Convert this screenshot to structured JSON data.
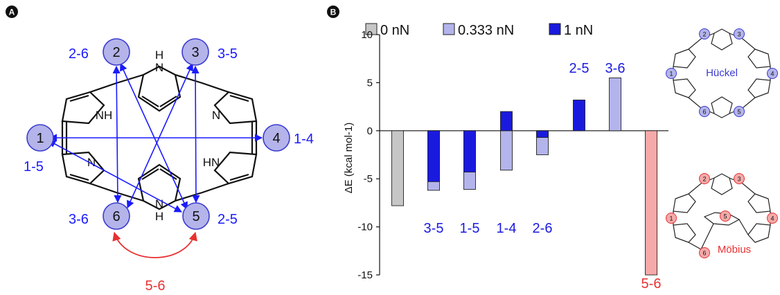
{
  "panelA": {
    "label": "A",
    "nodes": [
      {
        "id": "1",
        "label": "1"
      },
      {
        "id": "2",
        "label": "2"
      },
      {
        "id": "3",
        "label": "3"
      },
      {
        "id": "4",
        "label": "4"
      },
      {
        "id": "5",
        "label": "5"
      },
      {
        "id": "6",
        "label": "6"
      }
    ],
    "pair_labels": [
      {
        "text": "2-6"
      },
      {
        "text": "3-5"
      },
      {
        "text": "1-4"
      },
      {
        "text": "1-5"
      },
      {
        "text": "3-6"
      },
      {
        "text": "2-5"
      }
    ],
    "mobius_pair": "5-6",
    "atom_labels": {
      "nh_top": "H",
      "n_top": "N",
      "nh_left": "NH",
      "n_right": "N",
      "n_left": "N",
      "hn_right": "HN",
      "n_bottom": "N",
      "h_bottom": "H"
    },
    "colors": {
      "node_fill": "#b4b4ea",
      "node_stroke": "#3a3ad0",
      "pair": "#1a1aff",
      "mobius": "#e83030"
    }
  },
  "panelB": {
    "label": "B",
    "chart_data": {
      "type": "bar",
      "stacked_overlay": true,
      "ylabel": "ΔE (kcal mol-1)",
      "ylim": [
        -15,
        10
      ],
      "yticks": [
        10,
        5,
        0,
        -5,
        -10,
        -15
      ],
      "legend": {
        "placement": "top",
        "entries": [
          {
            "name": "0 nN",
            "color": "#c6c6c6"
          },
          {
            "name": "0.333 nN",
            "color": "#b4b4ec"
          },
          {
            "name": "1 nN",
            "color": "#1a1adf"
          }
        ]
      },
      "categories": [
        "0 nN",
        "3-5",
        "1-5",
        "1-4",
        "2-6",
        "2-5",
        "3-6",
        "5-6"
      ],
      "bars": [
        {
          "category": "",
          "force": "0 nN",
          "low": -7.8,
          "high": 0,
          "color": "#c6c6c6"
        },
        {
          "category": "3-5",
          "force": "0.333 nN",
          "low": -6.2,
          "high": 0,
          "color": "#b4b4ec"
        },
        {
          "category": "3-5",
          "force": "1 nN",
          "low": -5.3,
          "high": 0,
          "color": "#1a1adf"
        },
        {
          "category": "1-5",
          "force": "0.333 nN",
          "low": -6.1,
          "high": 0,
          "color": "#b4b4ec"
        },
        {
          "category": "1-5",
          "force": "1 nN",
          "low": -4.3,
          "high": 0,
          "color": "#1a1adf"
        },
        {
          "category": "1-4",
          "force": "0.333 nN",
          "low": -4.1,
          "high": 0,
          "color": "#b4b4ec"
        },
        {
          "category": "1-4",
          "force": "1 nN",
          "low": 0,
          "high": 2.0,
          "color": "#1a1adf"
        },
        {
          "category": "2-6",
          "force": "0.333 nN",
          "low": -2.5,
          "high": 0,
          "color": "#b4b4ec"
        },
        {
          "category": "2-6",
          "force": "1 nN",
          "low": -0.7,
          "high": 0,
          "color": "#1a1adf"
        },
        {
          "category": "2-5",
          "force": "1 nN",
          "low": 0,
          "high": 3.2,
          "color": "#1a1adf"
        },
        {
          "category": "3-6",
          "force": "0.333 nN",
          "low": 0,
          "high": 5.5,
          "color": "#b4b4ec"
        },
        {
          "category": "5-6",
          "force": "Möbius",
          "low": -15,
          "high": 0,
          "color": "#f7a9a9"
        }
      ],
      "bar_labels": [
        {
          "text": "3-5",
          "color": "#1a1adf"
        },
        {
          "text": "1-5",
          "color": "#1a1adf"
        },
        {
          "text": "1-4",
          "color": "#1a1adf"
        },
        {
          "text": "2-6",
          "color": "#1a1adf"
        },
        {
          "text": "2-5",
          "color": "#1a1adf"
        },
        {
          "text": "3-6",
          "color": "#1a1adf"
        },
        {
          "text": "5-6",
          "color": "#e83030"
        }
      ]
    },
    "huckel": {
      "label": "Hückel",
      "nodes": [
        "1",
        "2",
        "3",
        "4",
        "5",
        "6"
      ],
      "color": "#3a3ad0",
      "fill": "#b4b4ea"
    },
    "mobius": {
      "label": "Möbius",
      "nodes": [
        "1",
        "2",
        "3",
        "4",
        "5",
        "6"
      ],
      "color": "#e83030",
      "fill": "#f5aaaa"
    }
  }
}
